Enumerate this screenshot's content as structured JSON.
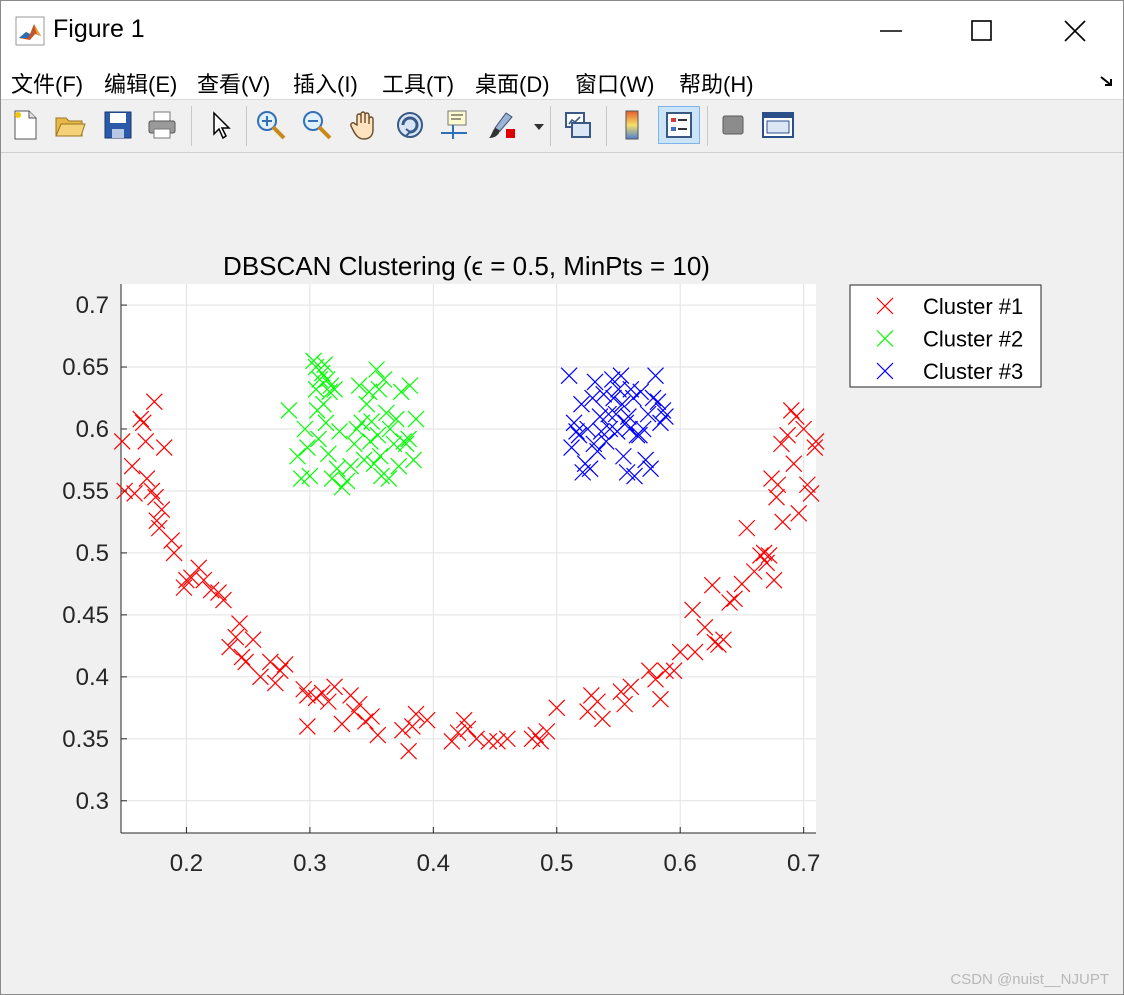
{
  "window": {
    "title": "Figure 1",
    "minimize_label": "minimize",
    "maximize_label": "maximize",
    "close_label": "close"
  },
  "menu": [
    {
      "label": "文件(F)"
    },
    {
      "label": "编辑(E)"
    },
    {
      "label": "查看(V)"
    },
    {
      "label": "插入(I)"
    },
    {
      "label": "工具(T)"
    },
    {
      "label": "桌面(D)"
    },
    {
      "label": "窗口(W)"
    },
    {
      "label": "帮助(H)"
    }
  ],
  "toolbar": [
    {
      "icon": "new-file-icon"
    },
    {
      "icon": "open-folder-icon"
    },
    {
      "icon": "save-icon"
    },
    {
      "icon": "print-icon"
    },
    {
      "icon": "pointer-icon"
    },
    {
      "icon": "zoom-in-icon"
    },
    {
      "icon": "zoom-out-icon"
    },
    {
      "icon": "pan-hand-icon"
    },
    {
      "icon": "rotate-3d-icon"
    },
    {
      "icon": "data-cursor-icon"
    },
    {
      "icon": "brush-icon"
    },
    {
      "icon": "link-plot-icon"
    },
    {
      "icon": "colorbar-icon"
    },
    {
      "icon": "legend-icon",
      "active": true
    },
    {
      "icon": "hide-plot-tools-icon"
    },
    {
      "icon": "show-plot-tools-icon"
    }
  ],
  "watermark": "CSDN @nuist__NJUPT",
  "chart_data": {
    "type": "scatter",
    "title": "DBSCAN Clustering (ϵ = 0.5, MinPts = 10)",
    "xlabel": "",
    "ylabel": "",
    "xlim": [
      0.147,
      0.71
    ],
    "ylim": [
      0.274,
      0.717
    ],
    "xticks": [
      0.2,
      0.3,
      0.4,
      0.5,
      0.6,
      0.7
    ],
    "yticks": [
      0.3,
      0.35,
      0.4,
      0.45,
      0.5,
      0.55,
      0.6,
      0.65,
      0.7
    ],
    "xticklabels": [
      "0.2",
      "0.3",
      "0.4",
      "0.5",
      "0.6",
      "0.7"
    ],
    "yticklabels": [
      "0.3",
      "0.35",
      "0.4",
      "0.45",
      "0.5",
      "0.55",
      "0.6",
      "0.65",
      "0.7"
    ],
    "grid": true,
    "marker": "x",
    "legend_position": "outside-top-right",
    "series": [
      {
        "name": "Cluster #1",
        "color": "#ff0000",
        "points": [
          [
            0.148,
            0.59
          ],
          [
            0.15,
            0.55
          ],
          [
            0.156,
            0.57
          ],
          [
            0.158,
            0.548
          ],
          [
            0.163,
            0.608
          ],
          [
            0.165,
            0.605
          ],
          [
            0.167,
            0.59
          ],
          [
            0.168,
            0.56
          ],
          [
            0.172,
            0.55
          ],
          [
            0.174,
            0.622
          ],
          [
            0.175,
            0.545
          ],
          [
            0.176,
            0.526
          ],
          [
            0.178,
            0.52
          ],
          [
            0.18,
            0.535
          ],
          [
            0.182,
            0.585
          ],
          [
            0.188,
            0.51
          ],
          [
            0.19,
            0.5
          ],
          [
            0.198,
            0.472
          ],
          [
            0.2,
            0.478
          ],
          [
            0.204,
            0.48
          ],
          [
            0.21,
            0.488
          ],
          [
            0.214,
            0.478
          ],
          [
            0.22,
            0.47
          ],
          [
            0.226,
            0.468
          ],
          [
            0.23,
            0.462
          ],
          [
            0.235,
            0.424
          ],
          [
            0.24,
            0.432
          ],
          [
            0.243,
            0.443
          ],
          [
            0.245,
            0.416
          ],
          [
            0.248,
            0.412
          ],
          [
            0.254,
            0.43
          ],
          [
            0.26,
            0.4
          ],
          [
            0.268,
            0.412
          ],
          [
            0.272,
            0.395
          ],
          [
            0.276,
            0.405
          ],
          [
            0.28,
            0.41
          ],
          [
            0.295,
            0.39
          ],
          [
            0.298,
            0.385
          ],
          [
            0.298,
            0.36
          ],
          [
            0.305,
            0.383
          ],
          [
            0.31,
            0.387
          ],
          [
            0.315,
            0.38
          ],
          [
            0.32,
            0.392
          ],
          [
            0.326,
            0.362
          ],
          [
            0.333,
            0.385
          ],
          [
            0.336,
            0.372
          ],
          [
            0.34,
            0.378
          ],
          [
            0.345,
            0.364
          ],
          [
            0.35,
            0.368
          ],
          [
            0.355,
            0.353
          ],
          [
            0.375,
            0.357
          ],
          [
            0.38,
            0.34
          ],
          [
            0.383,
            0.36
          ],
          [
            0.386,
            0.37
          ],
          [
            0.395,
            0.365
          ],
          [
            0.415,
            0.348
          ],
          [
            0.42,
            0.355
          ],
          [
            0.425,
            0.365
          ],
          [
            0.428,
            0.358
          ],
          [
            0.435,
            0.35
          ],
          [
            0.445,
            0.348
          ],
          [
            0.452,
            0.348
          ],
          [
            0.46,
            0.35
          ],
          [
            0.48,
            0.35
          ],
          [
            0.483,
            0.353
          ],
          [
            0.487,
            0.348
          ],
          [
            0.492,
            0.356
          ],
          [
            0.5,
            0.375
          ],
          [
            0.525,
            0.372
          ],
          [
            0.528,
            0.385
          ],
          [
            0.533,
            0.38
          ],
          [
            0.537,
            0.366
          ],
          [
            0.552,
            0.388
          ],
          [
            0.555,
            0.378
          ],
          [
            0.56,
            0.392
          ],
          [
            0.575,
            0.405
          ],
          [
            0.58,
            0.398
          ],
          [
            0.584,
            0.382
          ],
          [
            0.588,
            0.405
          ],
          [
            0.595,
            0.405
          ],
          [
            0.6,
            0.42
          ],
          [
            0.61,
            0.454
          ],
          [
            0.612,
            0.42
          ],
          [
            0.62,
            0.44
          ],
          [
            0.626,
            0.474
          ],
          [
            0.628,
            0.428
          ],
          [
            0.631,
            0.426
          ],
          [
            0.635,
            0.43
          ],
          [
            0.64,
            0.46
          ],
          [
            0.644,
            0.463
          ],
          [
            0.65,
            0.475
          ],
          [
            0.654,
            0.52
          ],
          [
            0.66,
            0.485
          ],
          [
            0.665,
            0.498
          ],
          [
            0.668,
            0.5
          ],
          [
            0.67,
            0.492
          ],
          [
            0.672,
            0.498
          ],
          [
            0.674,
            0.56
          ],
          [
            0.676,
            0.478
          ],
          [
            0.678,
            0.545
          ],
          [
            0.679,
            0.555
          ],
          [
            0.682,
            0.588
          ],
          [
            0.683,
            0.525
          ],
          [
            0.687,
            0.595
          ],
          [
            0.69,
            0.615
          ],
          [
            0.692,
            0.572
          ],
          [
            0.694,
            0.61
          ],
          [
            0.696,
            0.532
          ],
          [
            0.7,
            0.6
          ],
          [
            0.703,
            0.555
          ],
          [
            0.706,
            0.548
          ],
          [
            0.709,
            0.585
          ],
          [
            0.71,
            0.59
          ]
        ]
      },
      {
        "name": "Cluster #2",
        "color": "#00ff00",
        "points": [
          [
            0.283,
            0.615
          ],
          [
            0.29,
            0.578
          ],
          [
            0.293,
            0.56
          ],
          [
            0.296,
            0.6
          ],
          [
            0.298,
            0.585
          ],
          [
            0.3,
            0.562
          ],
          [
            0.303,
            0.655
          ],
          [
            0.305,
            0.65
          ],
          [
            0.305,
            0.632
          ],
          [
            0.306,
            0.615
          ],
          [
            0.307,
            0.592
          ],
          [
            0.308,
            0.64
          ],
          [
            0.31,
            0.645
          ],
          [
            0.311,
            0.62
          ],
          [
            0.312,
            0.652
          ],
          [
            0.313,
            0.605
          ],
          [
            0.314,
            0.64
          ],
          [
            0.315,
            0.58
          ],
          [
            0.316,
            0.63
          ],
          [
            0.317,
            0.635
          ],
          [
            0.318,
            0.56
          ],
          [
            0.32,
            0.632
          ],
          [
            0.322,
            0.568
          ],
          [
            0.324,
            0.598
          ],
          [
            0.326,
            0.553
          ],
          [
            0.33,
            0.558
          ],
          [
            0.333,
            0.57
          ],
          [
            0.336,
            0.588
          ],
          [
            0.338,
            0.6
          ],
          [
            0.34,
            0.635
          ],
          [
            0.342,
            0.605
          ],
          [
            0.344,
            0.575
          ],
          [
            0.346,
            0.62
          ],
          [
            0.348,
            0.63
          ],
          [
            0.349,
            0.59
          ],
          [
            0.35,
            0.606
          ],
          [
            0.352,
            0.572
          ],
          [
            0.354,
            0.648
          ],
          [
            0.355,
            0.595
          ],
          [
            0.356,
            0.632
          ],
          [
            0.357,
            0.578
          ],
          [
            0.358,
            0.562
          ],
          [
            0.36,
            0.64
          ],
          [
            0.362,
            0.613
          ],
          [
            0.364,
            0.56
          ],
          [
            0.365,
            0.6
          ],
          [
            0.368,
            0.588
          ],
          [
            0.37,
            0.608
          ],
          [
            0.372,
            0.57
          ],
          [
            0.374,
            0.63
          ],
          [
            0.376,
            0.59
          ],
          [
            0.378,
            0.588
          ],
          [
            0.38,
            0.592
          ],
          [
            0.381,
            0.635
          ],
          [
            0.384,
            0.575
          ],
          [
            0.386,
            0.608
          ]
        ]
      },
      {
        "name": "Cluster #3",
        "color": "#0000ff",
        "points": [
          [
            0.51,
            0.643
          ],
          [
            0.512,
            0.585
          ],
          [
            0.514,
            0.605
          ],
          [
            0.516,
            0.598
          ],
          [
            0.518,
            0.595
          ],
          [
            0.52,
            0.62
          ],
          [
            0.521,
            0.565
          ],
          [
            0.523,
            0.572
          ],
          [
            0.525,
            0.6
          ],
          [
            0.527,
            0.568
          ],
          [
            0.529,
            0.625
          ],
          [
            0.53,
            0.588
          ],
          [
            0.531,
            0.638
          ],
          [
            0.533,
            0.582
          ],
          [
            0.535,
            0.61
          ],
          [
            0.536,
            0.598
          ],
          [
            0.538,
            0.628
          ],
          [
            0.54,
            0.59
          ],
          [
            0.542,
            0.612
          ],
          [
            0.543,
            0.6
          ],
          [
            0.545,
            0.64
          ],
          [
            0.546,
            0.625
          ],
          [
            0.548,
            0.612
          ],
          [
            0.549,
            0.598
          ],
          [
            0.55,
            0.632
          ],
          [
            0.552,
            0.643
          ],
          [
            0.553,
            0.62
          ],
          [
            0.554,
            0.578
          ],
          [
            0.556,
            0.605
          ],
          [
            0.557,
            0.565
          ],
          [
            0.558,
            0.61
          ],
          [
            0.559,
            0.6
          ],
          [
            0.56,
            0.632
          ],
          [
            0.562,
            0.625
          ],
          [
            0.563,
            0.562
          ],
          [
            0.565,
            0.595
          ],
          [
            0.567,
            0.595
          ],
          [
            0.568,
            0.63
          ],
          [
            0.57,
            0.6
          ],
          [
            0.572,
            0.575
          ],
          [
            0.574,
            0.612
          ],
          [
            0.576,
            0.568
          ],
          [
            0.578,
            0.625
          ],
          [
            0.58,
            0.643
          ],
          [
            0.582,
            0.622
          ],
          [
            0.584,
            0.605
          ],
          [
            0.586,
            0.615
          ],
          [
            0.588,
            0.61
          ]
        ]
      }
    ]
  }
}
